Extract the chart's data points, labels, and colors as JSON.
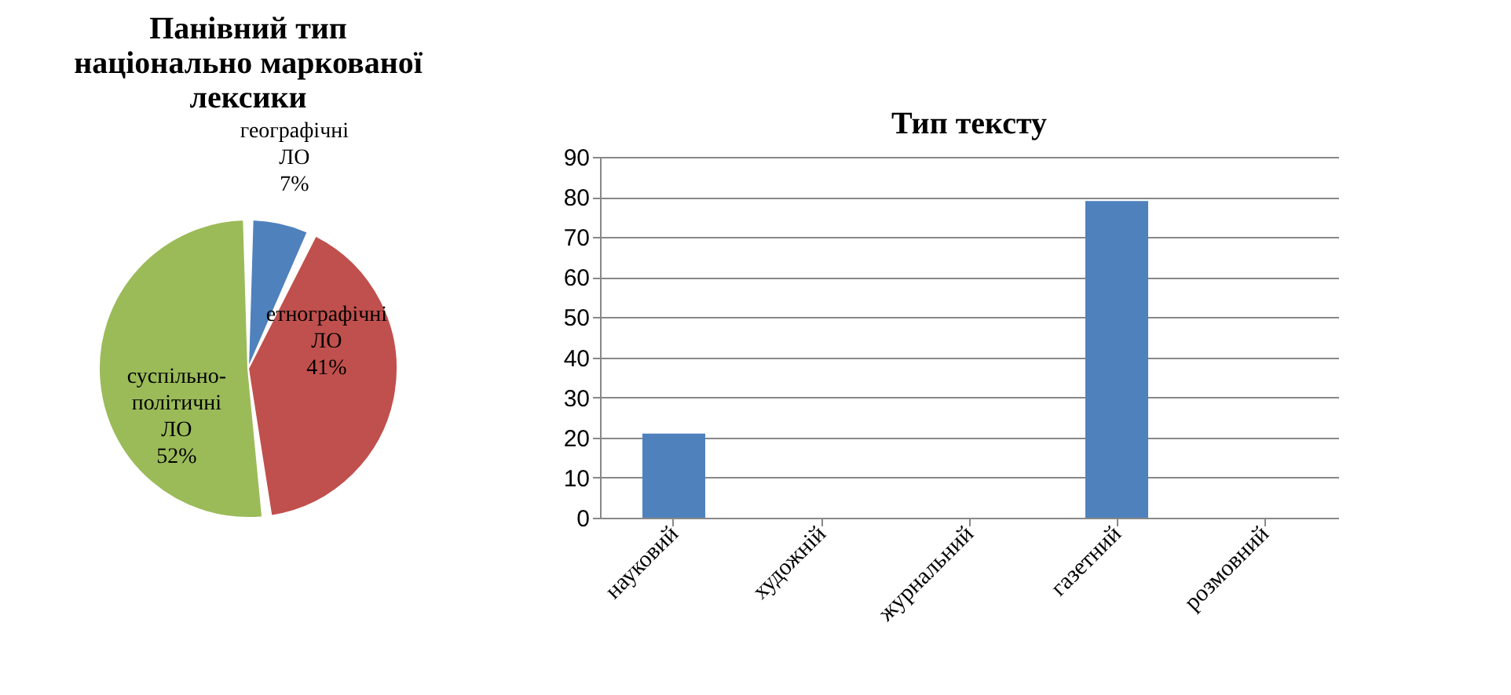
{
  "chart_data": [
    {
      "type": "pie",
      "title": "Панівний тип національно маркованої лексики",
      "categories": [
        "географічні ЛО",
        "етнографічні ЛО",
        "суспільно-політичні ЛО"
      ],
      "values": [
        7,
        41,
        52
      ],
      "colors": [
        "#4f81bd",
        "#c0504d",
        "#9bbb59"
      ],
      "value_labels": [
        "7%",
        "41%",
        "52%"
      ],
      "legend": false
    },
    {
      "type": "bar",
      "title": "Тип тексту",
      "categories": [
        "науковий",
        "художній",
        "журнальний",
        "газетний",
        "розмовний"
      ],
      "values": [
        21,
        0,
        0,
        79,
        0
      ],
      "color": "#4f81bd",
      "ylim": [
        0,
        90
      ],
      "yticks": [
        0,
        10,
        20,
        30,
        40,
        50,
        60,
        70,
        80,
        90
      ],
      "grid": "y"
    }
  ]
}
